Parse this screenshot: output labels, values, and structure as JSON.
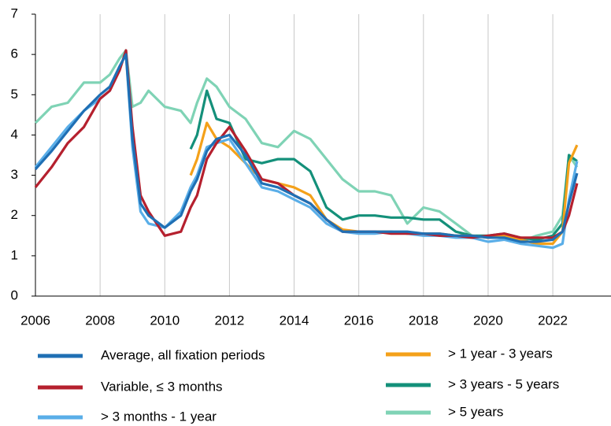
{
  "chart_data": {
    "type": "line",
    "x": [
      2006,
      2006.5,
      2007,
      2007.5,
      2008,
      2008.3,
      2008.6,
      2008.8,
      2009,
      2009.25,
      2009.5,
      2010,
      2010.5,
      2010.8,
      2011,
      2011.3,
      2011.6,
      2012,
      2012.5,
      2013,
      2013.5,
      2014,
      2014.5,
      2015,
      2015.5,
      2016,
      2016.5,
      2017,
      2017.5,
      2018,
      2018.5,
      2019,
      2019.5,
      2020,
      2020.5,
      2021,
      2021.5,
      2022,
      2022.3,
      2022.5,
      2022.75
    ],
    "xlim": [
      2006,
      2023.8
    ],
    "xticks": [
      2006,
      2008,
      2010,
      2012,
      2014,
      2016,
      2018,
      2020,
      2022
    ],
    "ylim": [
      0,
      7
    ],
    "yticks": [
      0,
      1,
      2,
      3,
      4,
      5,
      6,
      7
    ],
    "grid": true,
    "series": [
      {
        "name": "Average, all fixation periods",
        "color": "#1f6fb4",
        "values": [
          3.15,
          3.6,
          4.1,
          4.6,
          5.0,
          5.2,
          5.7,
          6.0,
          3.9,
          2.3,
          2.0,
          1.7,
          2.0,
          2.6,
          2.9,
          3.6,
          3.9,
          4.0,
          3.5,
          2.8,
          2.7,
          2.5,
          2.3,
          1.9,
          1.6,
          1.6,
          1.6,
          1.6,
          1.6,
          1.55,
          1.55,
          1.5,
          1.5,
          1.45,
          1.45,
          1.35,
          1.35,
          1.4,
          1.6,
          2.3,
          3.05
        ]
      },
      {
        "name": "Variable, ≤ 3 months",
        "color": "#b5202e",
        "values": [
          2.7,
          3.2,
          3.8,
          4.2,
          4.9,
          5.1,
          5.6,
          6.1,
          4.2,
          2.5,
          2.1,
          1.5,
          1.6,
          2.2,
          2.5,
          3.4,
          3.8,
          4.2,
          3.6,
          2.9,
          2.8,
          2.5,
          2.3,
          1.9,
          1.6,
          1.6,
          1.6,
          1.55,
          1.55,
          1.55,
          1.5,
          1.5,
          1.45,
          1.5,
          1.55,
          1.45,
          1.45,
          1.45,
          1.6,
          2.0,
          2.8
        ]
      },
      {
        "name": "> 3 months - 1 year",
        "color": "#5aaee8",
        "values": [
          3.2,
          3.7,
          4.2,
          4.6,
          4.9,
          5.1,
          5.7,
          6.0,
          3.7,
          2.1,
          1.8,
          1.7,
          2.1,
          2.7,
          3.0,
          3.7,
          3.8,
          3.9,
          3.3,
          2.7,
          2.6,
          2.4,
          2.2,
          1.8,
          1.6,
          1.55,
          1.55,
          1.6,
          1.55,
          1.5,
          1.5,
          1.45,
          1.45,
          1.35,
          1.4,
          1.3,
          1.25,
          1.2,
          1.3,
          2.4,
          3.35
        ]
      },
      {
        "name": "> 1 year - 3 years",
        "color": "#f4a11a",
        "values": [
          null,
          null,
          null,
          null,
          null,
          null,
          null,
          null,
          null,
          null,
          null,
          null,
          null,
          3.0,
          3.4,
          4.3,
          3.9,
          3.7,
          3.3,
          2.9,
          2.8,
          2.7,
          2.5,
          1.9,
          1.65,
          1.6,
          1.6,
          1.6,
          1.55,
          1.55,
          1.55,
          1.5,
          1.5,
          1.45,
          1.5,
          1.4,
          1.3,
          1.3,
          1.6,
          3.3,
          3.75
        ]
      },
      {
        "name": "> 3 years - 5 years",
        "color": "#14907a",
        "values": [
          null,
          null,
          null,
          null,
          null,
          null,
          null,
          null,
          null,
          null,
          null,
          null,
          null,
          3.65,
          4.0,
          5.1,
          4.4,
          4.3,
          3.4,
          3.3,
          3.4,
          3.4,
          3.1,
          2.2,
          1.9,
          2.0,
          2.0,
          1.95,
          1.95,
          1.9,
          1.9,
          1.6,
          1.5,
          1.5,
          1.55,
          1.45,
          1.4,
          1.5,
          1.8,
          3.5,
          3.35
        ]
      },
      {
        "name": "> 5 years",
        "color": "#7fd3b5",
        "values": [
          4.3,
          4.7,
          4.8,
          5.3,
          5.3,
          5.5,
          5.9,
          6.1,
          4.7,
          4.8,
          5.1,
          4.7,
          4.6,
          4.3,
          4.8,
          5.4,
          5.2,
          4.7,
          4.4,
          3.8,
          3.7,
          4.1,
          3.9,
          3.4,
          2.9,
          2.6,
          2.6,
          2.5,
          1.8,
          2.2,
          2.1,
          1.8,
          1.5,
          1.45,
          1.5,
          1.35,
          1.5,
          1.6,
          2.0,
          3.5,
          3.2
        ]
      }
    ]
  }
}
